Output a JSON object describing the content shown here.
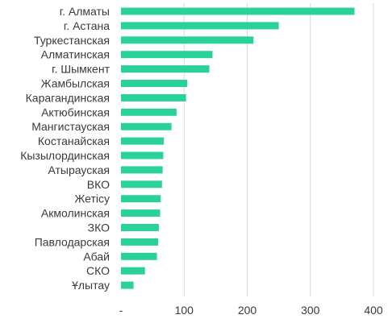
{
  "chart_data": {
    "type": "bar",
    "orientation": "horizontal",
    "categories": [
      "г. Алматы",
      "г. Астана",
      "Туркестанская",
      "Алматинская",
      "г. Шымкент",
      "Жамбылская",
      "Карагандинская",
      "Актюбинская",
      "Мангистауская",
      "Костанайская",
      "Кызылординская",
      "Атырауская",
      "ВКО",
      "Жетісу",
      "Акмолинская",
      "ЗКО",
      "Павлодарская",
      "Абай",
      "СКО",
      "Ұлытау"
    ],
    "values": [
      370,
      250,
      210,
      145,
      140,
      105,
      103,
      88,
      80,
      68,
      67,
      66,
      65,
      63,
      62,
      60,
      59,
      57,
      38,
      20
    ],
    "bar_color": "#2bd19a",
    "xlim": [
      0,
      400
    ],
    "x_ticks": [
      0,
      100,
      200,
      300,
      400
    ],
    "x_tick_labels": [
      "-",
      "100",
      "200",
      "300",
      "400"
    ],
    "grid": true,
    "title": "",
    "xlabel": "",
    "ylabel": ""
  }
}
